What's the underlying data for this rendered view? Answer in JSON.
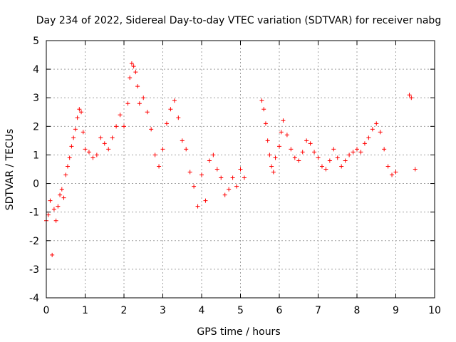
{
  "chart_data": {
    "type": "scatter",
    "title": "Day 234 of 2022, Sidereal Day-to-day VTEC variation (SDTVAR) for receiver nabg",
    "xlabel": "GPS time / hours",
    "ylabel": "SDTVAR / TECUs",
    "xlim": [
      0,
      10
    ],
    "ylim": [
      -4,
      5
    ],
    "x_ticks": [
      "0",
      "1",
      "2",
      "3",
      "4",
      "5",
      "6",
      "7",
      "8",
      "9",
      "10"
    ],
    "y_ticks": [
      "-4",
      "-3",
      "-2",
      "-1",
      "0",
      "1",
      "2",
      "3",
      "4",
      "5"
    ],
    "grid": true,
    "marker": "+",
    "color": "#ff0000",
    "series": [
      {
        "name": "SDTVAR",
        "segments": [
          {
            "x": [
              0.0,
              0.05,
              0.1,
              0.15,
              0.2,
              0.25,
              0.3,
              0.35,
              0.4,
              0.45,
              0.5,
              0.55,
              0.6,
              0.65,
              0.7,
              0.75,
              0.8,
              0.85,
              0.9,
              0.95,
              1.0,
              1.1,
              1.2,
              1.3,
              1.4,
              1.5,
              1.6,
              1.7,
              1.8,
              1.9,
              2.0,
              2.1,
              2.15,
              2.2,
              2.25,
              2.3,
              2.35,
              2.4,
              2.5,
              2.6,
              2.7,
              2.8,
              2.9,
              3.0,
              3.1,
              3.2,
              3.3,
              3.4,
              3.5,
              3.6,
              3.7,
              3.8,
              3.9,
              4.0,
              4.1,
              4.2,
              4.3,
              4.4,
              4.5,
              4.6,
              4.7,
              4.8,
              4.9,
              5.0,
              5.1
            ],
            "y": [
              -1.3,
              -1.1,
              -0.6,
              -2.5,
              -0.9,
              -1.3,
              -0.8,
              -0.4,
              -0.2,
              -0.5,
              0.3,
              0.6,
              0.9,
              1.3,
              1.6,
              1.9,
              2.3,
              2.6,
              2.5,
              1.8,
              1.2,
              1.1,
              0.9,
              1.0,
              1.6,
              1.4,
              1.2,
              1.6,
              2.0,
              2.4,
              2.0,
              2.8,
              3.7,
              4.2,
              4.1,
              3.9,
              3.4,
              2.8,
              3.0,
              2.5,
              1.9,
              1.0,
              0.6,
              1.2,
              2.1,
              2.6,
              2.9,
              2.3,
              1.5,
              1.2,
              0.4,
              -0.1,
              -0.8,
              0.3,
              -0.6,
              0.8,
              1.0,
              0.5,
              0.2,
              -0.4,
              -0.2,
              0.2,
              -0.1,
              0.5,
              0.2
            ]
          },
          {
            "x": [
              5.55,
              5.6,
              5.65,
              5.7,
              5.75,
              5.8,
              5.85,
              5.9,
              6.0,
              6.05,
              6.1,
              6.2,
              6.3,
              6.4,
              6.5,
              6.6,
              6.7,
              6.8,
              6.9,
              7.0,
              7.1,
              7.2,
              7.3,
              7.4,
              7.5,
              7.6,
              7.7,
              7.8,
              7.9,
              8.0,
              8.1,
              8.2,
              8.3,
              8.4,
              8.5,
              8.6,
              8.7,
              8.8,
              8.9,
              9.0
            ],
            "y": [
              2.9,
              2.6,
              2.1,
              1.5,
              1.0,
              0.6,
              0.4,
              0.9,
              1.3,
              1.8,
              2.2,
              1.7,
              1.2,
              0.9,
              0.8,
              1.1,
              1.5,
              1.4,
              1.1,
              0.9,
              0.6,
              0.5,
              0.8,
              1.2,
              0.9,
              0.6,
              0.8,
              1.0,
              1.1,
              1.2,
              1.1,
              1.4,
              1.6,
              1.9,
              2.1,
              1.8,
              1.2,
              0.6,
              0.3,
              0.4
            ]
          },
          {
            "x": [
              9.35,
              9.4,
              9.5
            ],
            "y": [
              3.1,
              3.0,
              0.5
            ]
          }
        ]
      }
    ]
  }
}
